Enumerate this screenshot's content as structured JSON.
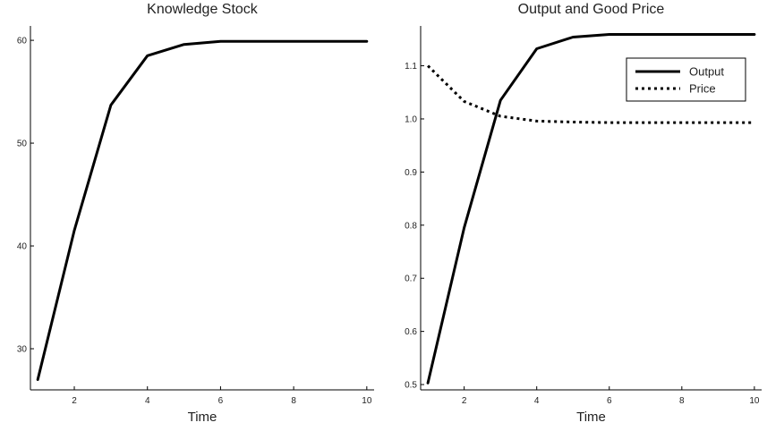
{
  "chart_data": [
    {
      "type": "line",
      "title": "Knowledge Stock",
      "xlabel": "Time",
      "ylabel": "",
      "xlim": [
        0.8,
        10.2
      ],
      "ylim": [
        26.0,
        61.4
      ],
      "xticks": [
        2,
        4,
        6,
        8,
        10
      ],
      "yticks": [
        30,
        40,
        50,
        60
      ],
      "ytick_labels": [
        "30",
        "40",
        "50",
        "60"
      ],
      "grid": false,
      "legend": null,
      "x": [
        1,
        2,
        3,
        4,
        5,
        6,
        7,
        8,
        9,
        10
      ],
      "series": [
        {
          "style": "solid",
          "color": "#000000",
          "values": [
            27.0,
            41.5,
            53.7,
            58.5,
            59.6,
            59.9,
            59.9,
            59.9,
            59.9,
            59.9
          ]
        }
      ]
    },
    {
      "type": "line",
      "title": "Output and Good Price",
      "xlabel": "Time",
      "ylabel": "",
      "xlim": [
        0.8,
        10.2
      ],
      "ylim": [
        0.49,
        1.175
      ],
      "xticks": [
        2,
        4,
        6,
        8,
        10
      ],
      "yticks": [
        0.5,
        0.6,
        0.7,
        0.8,
        0.9,
        1.0,
        1.1
      ],
      "ytick_labels": [
        "0.5",
        "0.6",
        "0.7",
        "0.8",
        "0.9",
        "1.0",
        "1.1"
      ],
      "grid": false,
      "legend": "top-right",
      "x": [
        1,
        2,
        3,
        4,
        5,
        6,
        7,
        8,
        9,
        10
      ],
      "series": [
        {
          "name": "Output",
          "style": "solid",
          "color": "#000000",
          "values": [
            0.503,
            0.795,
            1.035,
            1.132,
            1.154,
            1.159,
            1.159,
            1.159,
            1.159,
            1.159
          ]
        },
        {
          "name": "Price",
          "style": "dotted",
          "color": "#000000",
          "values": [
            1.1,
            1.033,
            1.005,
            0.996,
            0.994,
            0.993,
            0.993,
            0.993,
            0.993,
            0.993
          ]
        }
      ]
    }
  ]
}
